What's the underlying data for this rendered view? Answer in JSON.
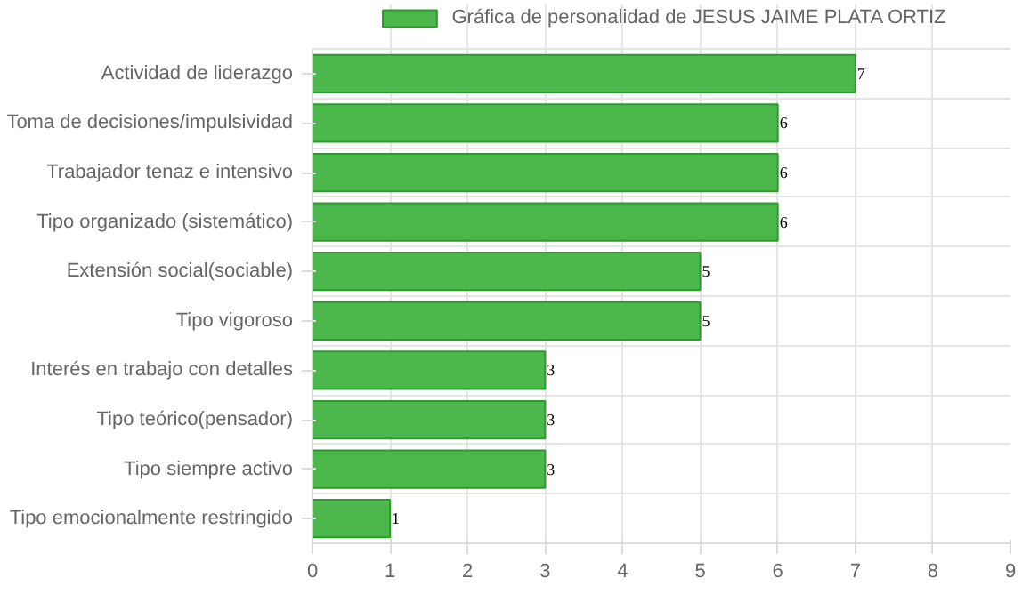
{
  "chart_data": {
    "type": "bar",
    "orientation": "horizontal",
    "categories": [
      "Actividad de liderazgo",
      "Toma de decisiones/impulsividad",
      "Trabajador tenaz e intensivo",
      "Tipo organizado (sistemático)",
      "Extensión social(sociable)",
      "Tipo vigoroso",
      "Interés en trabajo con detalles",
      "Tipo teórico(pensador)",
      "Tipo siempre activo",
      "Tipo emocionalmente restringido"
    ],
    "series": [
      {
        "name": "Gráfica de personalidad de JESUS JAIME PLATA ORTIZ",
        "color": "#4cb84c",
        "values": [
          7,
          6,
          6,
          6,
          5,
          5,
          3,
          3,
          3,
          1
        ]
      }
    ],
    "xlim": [
      0,
      9
    ],
    "xticks": [
      0,
      1,
      2,
      3,
      4,
      5,
      6,
      7,
      8,
      9
    ],
    "grid": true,
    "legend": "top",
    "data_labels": true
  }
}
